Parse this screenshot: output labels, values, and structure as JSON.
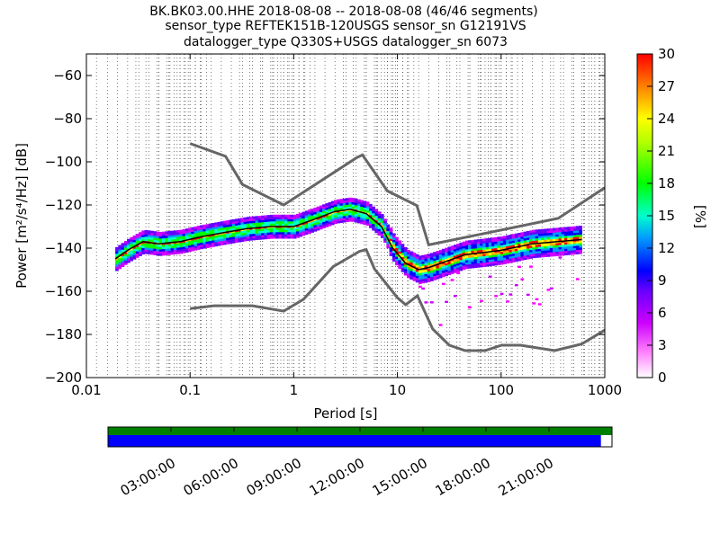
{
  "chart_data": [
    {
      "type": "heatmap",
      "title": {
        "line1": "BK.BK03.00.HHE   2018-08-08 -- 2018-08-08  (46/46 segments)",
        "line2": "sensor_type REFTEK151B-120USGS sensor_sn G12191VS",
        "line3": "datalogger_type Q330S+USGS datalogger_sn 6073"
      },
      "xlabel": "Period [s]",
      "ylabel": "Power [m²/s⁴/Hz] [dB]",
      "xscale": "log",
      "xlim": [
        0.01,
        1000
      ],
      "ylim": [
        -200,
        -50
      ],
      "x_ticks": [
        {
          "value": 0.01,
          "label": "0.01"
        },
        {
          "value": 0.1,
          "label": "0.1"
        },
        {
          "value": 1,
          "label": "1"
        },
        {
          "value": 10,
          "label": "10"
        },
        {
          "value": 100,
          "label": "100"
        },
        {
          "value": 1000,
          "label": "1000"
        }
      ],
      "y_ticks": [
        {
          "value": -60,
          "label": "−60"
        },
        {
          "value": -80,
          "label": "−80"
        },
        {
          "value": -100,
          "label": "−100"
        },
        {
          "value": -120,
          "label": "−120"
        },
        {
          "value": -140,
          "label": "−140"
        },
        {
          "value": -160,
          "label": "−160"
        },
        {
          "value": -180,
          "label": "−180"
        },
        {
          "value": -200,
          "label": "−200"
        }
      ],
      "grid": "dotted vertical lines at log-decade subdivisions",
      "noise_models": [
        {
          "points": [
            [
              0.1,
              -91.5
            ],
            [
              0.22,
              -97.4
            ],
            [
              0.32,
              -110.5
            ],
            [
              0.8,
              -120
            ],
            [
              4.0,
              -98.2
            ],
            [
              4.6,
              -96.8
            ],
            [
              8.0,
              -113.5
            ],
            [
              15.4,
              -120.3
            ],
            [
              20.0,
              -138.5
            ],
            [
              354.8,
              -126.2
            ],
            [
              1000,
              -112
            ]
          ]
        },
        {
          "points": [
            [
              0.1,
              -168
            ],
            [
              0.17,
              -166.7
            ],
            [
              0.4,
              -166.7
            ],
            [
              0.8,
              -169.2
            ],
            [
              1.24,
              -163.7
            ],
            [
              2.4,
              -148.6
            ],
            [
              4.3,
              -141.5
            ],
            [
              5.0,
              -140.7
            ],
            [
              6.0,
              -149.6
            ],
            [
              10.0,
              -163
            ],
            [
              12.0,
              -166.2
            ],
            [
              15.6,
              -162.1
            ],
            [
              21.9,
              -177.5
            ],
            [
              31.6,
              -185
            ],
            [
              45.0,
              -187.5
            ],
            [
              70.0,
              -187.5
            ],
            [
              101,
              -185
            ],
            [
              154,
              -185
            ],
            [
              328,
              -187.5
            ],
            [
              600,
              -184.4
            ],
            [
              1000,
              -178
            ]
          ]
        }
      ],
      "mean_psd": [
        [
          0.019,
          -145
        ],
        [
          0.025,
          -141
        ],
        [
          0.035,
          -137
        ],
        [
          0.05,
          -138
        ],
        [
          0.08,
          -137
        ],
        [
          0.12,
          -135
        ],
        [
          0.2,
          -133
        ],
        [
          0.35,
          -131
        ],
        [
          0.6,
          -130
        ],
        [
          1.0,
          -130
        ],
        [
          1.5,
          -127
        ],
        [
          2.5,
          -123
        ],
        [
          3.5,
          -122
        ],
        [
          5.0,
          -124
        ],
        [
          7.0,
          -130
        ],
        [
          9.0,
          -140
        ],
        [
          12.0,
          -147
        ],
        [
          16.0,
          -150
        ],
        [
          20.0,
          -149
        ],
        [
          30.0,
          -146
        ],
        [
          45.0,
          -143
        ],
        [
          70.0,
          -142
        ],
        [
          100.0,
          -141
        ],
        [
          200.0,
          -138
        ],
        [
          350.0,
          -137
        ],
        [
          600.0,
          -136
        ]
      ],
      "colorbar": {
        "label": "[%]",
        "range": [
          0,
          30
        ],
        "ticks": [
          "0",
          "3",
          "6",
          "9",
          "12",
          "15",
          "18",
          "21",
          "24",
          "27",
          "30"
        ]
      }
    },
    {
      "type": "timeline",
      "x_ticks": [
        "03:00:00",
        "06:00:00",
        "09:00:00",
        "12:00:00",
        "15:00:00",
        "18:00:00",
        "21:00:00"
      ],
      "data_coverage_fraction": 1.0,
      "psd_coverage_fraction": 0.978,
      "colors": {
        "data_bar": "#008000",
        "psd_bar": "#0000ff"
      }
    }
  ]
}
